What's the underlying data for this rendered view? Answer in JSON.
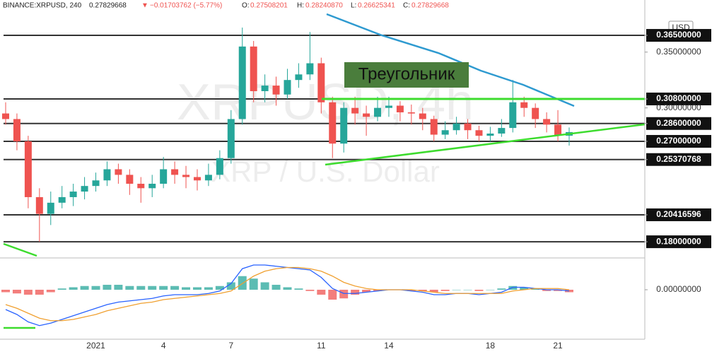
{
  "header": {
    "symbol": "BINANCE:XRPUSD, 240",
    "last": "0.27829668",
    "change": "−0.01703762 (−5.77%)",
    "o_label": "O:",
    "o": "0.27508201",
    "h_label": "H:",
    "h": "0.28240870",
    "l_label": "L:",
    "l": "0.26625341",
    "c_label": "C:",
    "c": "0.27829668",
    "currency": "USD"
  },
  "watermark": {
    "title": "XRPUSD, 4h",
    "subtitle": "XRP / U.S. Dollar"
  },
  "annotation": "Треугольник",
  "chart_data": {
    "type": "candlestick",
    "x": [
      null,
      null,
      null,
      null,
      null,
      null,
      null,
      null,
      "2021",
      null,
      null,
      null,
      null,
      null,
      "4",
      null,
      null,
      null,
      null,
      null,
      "7",
      null,
      null,
      null,
      null,
      null,
      null,
      null,
      "11",
      null,
      null,
      null,
      null,
      null,
      "14",
      null,
      null,
      null,
      null,
      null,
      null,
      null,
      null,
      "18",
      null,
      null,
      null,
      null,
      null,
      "21",
      null
    ],
    "open": [
      0.295,
      0.29,
      0.27,
      0.22,
      0.205,
      0.215,
      0.22,
      0.225,
      0.23,
      0.235,
      0.245,
      0.24,
      0.232,
      0.228,
      0.232,
      0.245,
      0.24,
      0.238,
      0.235,
      0.24,
      0.255,
      0.29,
      0.355,
      0.315,
      0.32,
      0.312,
      0.325,
      0.33,
      0.34,
      0.305,
      0.268,
      0.3,
      0.295,
      0.292,
      0.3,
      0.302,
      0.296,
      0.295,
      0.29,
      0.276,
      0.28,
      0.286,
      0.28,
      0.275,
      0.277,
      0.282,
      0.305,
      0.3,
      0.29,
      0.285,
      0.27508201
    ],
    "high": [
      0.305,
      0.295,
      0.275,
      0.228,
      0.225,
      0.23,
      0.232,
      0.238,
      0.242,
      0.252,
      0.25,
      0.245,
      0.238,
      0.24,
      0.256,
      0.252,
      0.248,
      0.245,
      0.25,
      0.262,
      0.298,
      0.372,
      0.36,
      0.33,
      0.328,
      0.335,
      0.34,
      0.368,
      0.345,
      0.31,
      0.305,
      0.31,
      0.302,
      0.31,
      0.31,
      0.306,
      0.303,
      0.3,
      0.293,
      0.288,
      0.292,
      0.29,
      0.284,
      0.283,
      0.29,
      0.325,
      0.31,
      0.304,
      0.296,
      0.298,
      0.2824087
    ],
    "low": [
      0.285,
      0.262,
      0.21,
      0.18,
      0.195,
      0.21,
      0.212,
      0.218,
      0.225,
      0.23,
      0.232,
      0.222,
      0.215,
      0.22,
      0.228,
      0.232,
      0.228,
      0.226,
      0.23,
      0.236,
      0.25,
      0.285,
      0.305,
      0.305,
      0.302,
      0.308,
      0.318,
      0.325,
      0.295,
      0.255,
      0.26,
      0.285,
      0.275,
      0.288,
      0.292,
      0.288,
      0.285,
      0.28,
      0.27,
      0.272,
      0.276,
      0.272,
      0.27,
      0.27,
      0.274,
      0.278,
      0.292,
      0.282,
      0.278,
      0.27,
      0.26625341
    ],
    "close": [
      0.29,
      0.27,
      0.22,
      0.205,
      0.215,
      0.22,
      0.225,
      0.23,
      0.235,
      0.245,
      0.24,
      0.232,
      0.228,
      0.232,
      0.245,
      0.24,
      0.238,
      0.235,
      0.24,
      0.255,
      0.29,
      0.355,
      0.315,
      0.32,
      0.312,
      0.325,
      0.33,
      0.34,
      0.305,
      0.268,
      0.3,
      0.295,
      0.292,
      0.3,
      0.302,
      0.296,
      0.295,
      0.29,
      0.276,
      0.28,
      0.286,
      0.28,
      0.275,
      0.277,
      0.282,
      0.305,
      0.3,
      0.29,
      0.285,
      0.27508201,
      0.27829668
    ],
    "up_color": "#26a69a",
    "down_color": "#ef5350",
    "ylim": [
      0.1655,
      0.3967
    ],
    "yticks": [
      {
        "value": 0.365,
        "label": "0.36500000"
      },
      {
        "value": 0.35,
        "label": "0.35000000"
      },
      {
        "value": 0.308,
        "label": "0.30800000"
      },
      {
        "value": 0.3,
        "label": "0.30000000"
      },
      {
        "value": 0.286,
        "label": "0.28600000"
      },
      {
        "value": 0.27,
        "label": "0.27000000"
      },
      {
        "value": 0.25370768,
        "label": "0.25370768"
      },
      {
        "value": 0.20416596,
        "label": "0.20416596"
      },
      {
        "value": 0.18,
        "label": "0.18000000"
      }
    ],
    "levels": [
      0.365,
      0.308,
      0.286,
      0.27,
      0.25370768,
      0.20416596,
      0.18
    ],
    "macd": {
      "ylim": [
        -0.04,
        0.0257
      ],
      "yticks": [
        {
          "value": 0,
          "label": "0.00000000"
        }
      ],
      "macd_color": "#2962ff",
      "signal_color": "#f0a030",
      "macd": [
        -0.016,
        -0.02,
        -0.026,
        -0.029,
        -0.027,
        -0.024,
        -0.021,
        -0.018,
        -0.015,
        -0.012,
        -0.01,
        -0.009,
        -0.008,
        -0.007,
        -0.005,
        -0.004,
        -0.004,
        -0.004,
        -0.003,
        -0.001,
        0.005,
        0.017,
        0.02,
        0.02,
        0.019,
        0.018,
        0.017,
        0.016,
        0.01,
        0.001,
        -0.003,
        -0.003,
        -0.002,
        -0.001,
        0,
        0,
        -0.001,
        -0.002,
        -0.004,
        -0.004,
        -0.003,
        -0.003,
        -0.004,
        -0.003,
        -0.002,
        0.002,
        0.002,
        0.001,
        0,
        0,
        -0.001
      ],
      "signal": [
        -0.012,
        -0.015,
        -0.019,
        -0.023,
        -0.025,
        -0.025,
        -0.024,
        -0.022,
        -0.02,
        -0.017,
        -0.015,
        -0.013,
        -0.011,
        -0.01,
        -0.008,
        -0.007,
        -0.006,
        -0.005,
        -0.004,
        -0.003,
        -0.001,
        0.005,
        0.011,
        0.015,
        0.017,
        0.018,
        0.018,
        0.017,
        0.015,
        0.011,
        0.006,
        0.003,
        0.001,
        0,
        0,
        0,
        0,
        -0.001,
        -0.002,
        -0.003,
        -0.003,
        -0.003,
        -0.003,
        -0.003,
        -0.003,
        -0.001,
        0,
        0.001,
        0.001,
        0.001,
        0
      ],
      "histogram": [
        -0.002,
        -0.003,
        -0.004,
        -0.004,
        -0.002,
        0.001,
        0.002,
        0.003,
        0.003,
        0.004,
        0.004,
        0.003,
        0.003,
        0.003,
        0.003,
        0.003,
        0.002,
        0.002,
        0.002,
        0.003,
        0.006,
        0.011,
        0.009,
        0.006,
        0.004,
        0.002,
        0.001,
        -0.001,
        -0.004,
        -0.008,
        -0.007,
        -0.004,
        -0.002,
        -0.001,
        0,
        0,
        -0.001,
        -0.001,
        -0.002,
        -0.001,
        0,
        0,
        -0.001,
        0,
        0.001,
        0.003,
        0.002,
        0.001,
        -0.001,
        -0.001,
        -0.002
      ]
    }
  }
}
